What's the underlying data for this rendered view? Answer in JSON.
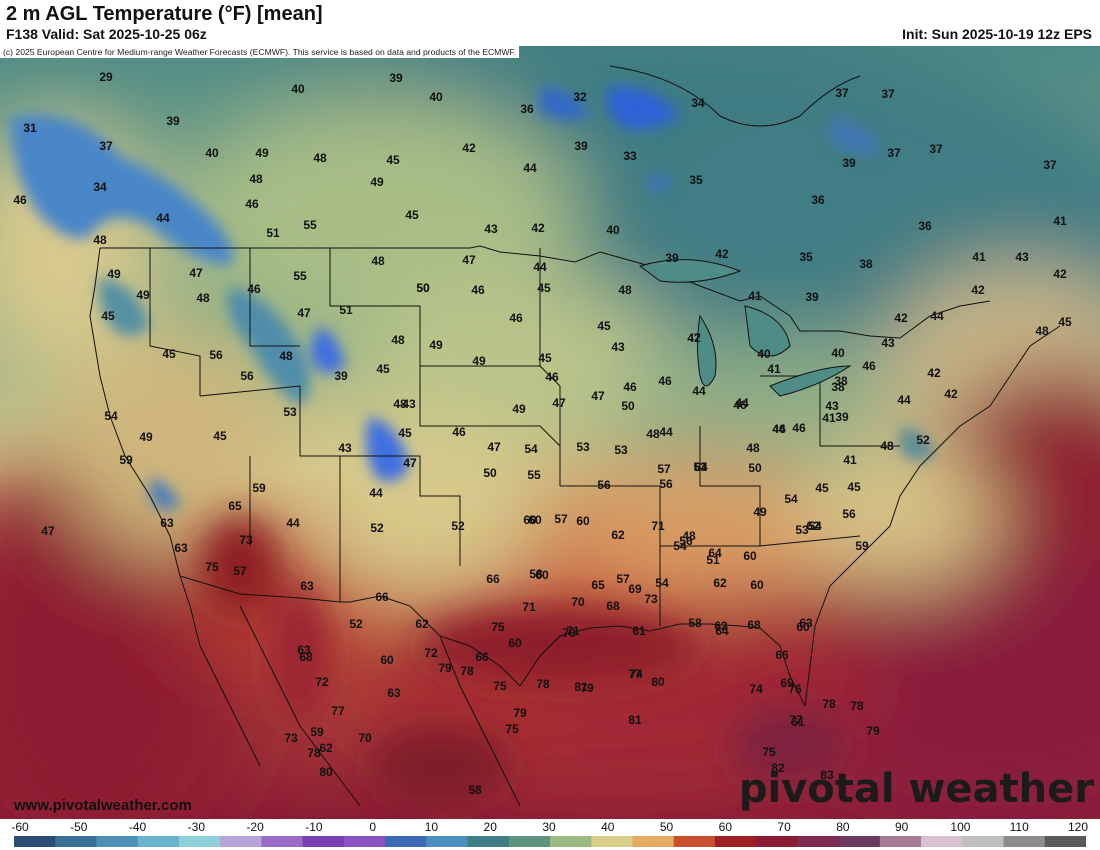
{
  "header": {
    "title": "2 m AGL Temperature (°F) [mean]",
    "valid": "F138 Valid: Sat 2025-10-25 06z",
    "init": "Init: Sun 2025-10-19 12z EPS"
  },
  "credit": "(c) 2025 European Centre for Medium-range Weather Forecasts (ECMWF). This service is based on data and products of the ECMWF.",
  "footer": {
    "website": "www.pivotalweather.com",
    "brand": "pivotal weather"
  },
  "legend": {
    "ticks": [
      "-60",
      "-50",
      "-40",
      "-30",
      "-20",
      "-10",
      "0",
      "10",
      "20",
      "30",
      "40",
      "50",
      "60",
      "70",
      "80",
      "90",
      "100",
      "110",
      "120"
    ],
    "colors": [
      "#2a4e73",
      "#3a6f96",
      "#4c91b5",
      "#6ab3cc",
      "#8fcfd9",
      "#b8a4d8",
      "#9a6cc8",
      "#7a3fb5",
      "#8a53c1",
      "#3d6ab4",
      "#4a8fbf",
      "#3f7e86",
      "#5c947e",
      "#9cb883",
      "#d8cf8a",
      "#e5ab60",
      "#c9502f",
      "#a01f24",
      "#8a1d35",
      "#7d2b52",
      "#6a3a5e",
      "#a77a95",
      "#d9c0cf",
      "#bfbfbf",
      "#8c8c8c",
      "#5a5a5a"
    ]
  },
  "map_labels": [
    {
      "t": "29"
    },
    {
      "t": "39"
    },
    {
      "t": "40"
    },
    {
      "t": "40"
    },
    {
      "t": "32"
    },
    {
      "t": "34"
    },
    {
      "t": "37"
    },
    {
      "t": "37"
    },
    {
      "t": "31"
    },
    {
      "t": "39"
    },
    {
      "t": "36"
    },
    {
      "t": "37"
    },
    {
      "t": "40"
    },
    {
      "t": "49"
    },
    {
      "t": "48"
    },
    {
      "t": "45"
    },
    {
      "t": "42"
    },
    {
      "t": "39"
    },
    {
      "t": "33"
    },
    {
      "t": "39"
    },
    {
      "t": "37"
    },
    {
      "t": "37"
    },
    {
      "t": "37"
    },
    {
      "t": "34"
    },
    {
      "t": "48"
    },
    {
      "t": "49"
    },
    {
      "t": "44"
    },
    {
      "t": "35"
    },
    {
      "t": "46"
    },
    {
      "t": "46"
    },
    {
      "t": "45"
    },
    {
      "t": "36"
    },
    {
      "t": "44"
    },
    {
      "t": "51"
    },
    {
      "t": "55"
    },
    {
      "t": "43"
    },
    {
      "t": "42"
    },
    {
      "t": "40"
    },
    {
      "t": "36"
    },
    {
      "t": "41"
    },
    {
      "t": "48"
    },
    {
      "t": "49"
    },
    {
      "t": "47"
    },
    {
      "t": "55"
    },
    {
      "t": "48"
    },
    {
      "t": "47"
    },
    {
      "t": "44"
    },
    {
      "t": "39"
    },
    {
      "t": "42"
    },
    {
      "t": "35"
    },
    {
      "t": "38"
    },
    {
      "t": "41"
    },
    {
      "t": "43"
    },
    {
      "t": "49"
    },
    {
      "t": "48"
    },
    {
      "t": "46"
    },
    {
      "t": "50"
    },
    {
      "t": "46"
    },
    {
      "t": "45"
    },
    {
      "t": "48"
    },
    {
      "t": "41"
    },
    {
      "t": "39"
    },
    {
      "t": "42"
    },
    {
      "t": "42"
    },
    {
      "t": "45"
    },
    {
      "t": "50"
    },
    {
      "t": "47"
    },
    {
      "t": "51"
    },
    {
      "t": "46"
    },
    {
      "t": "45"
    },
    {
      "t": "42"
    },
    {
      "t": "44"
    },
    {
      "t": "47"
    },
    {
      "t": "49"
    },
    {
      "t": "45"
    },
    {
      "t": "56"
    },
    {
      "t": "48"
    },
    {
      "t": "48"
    },
    {
      "t": "49"
    },
    {
      "t": "48"
    },
    {
      "t": "45"
    },
    {
      "t": "43"
    },
    {
      "t": "45"
    },
    {
      "t": "42"
    },
    {
      "t": "40"
    },
    {
      "t": "40"
    },
    {
      "t": "46"
    },
    {
      "t": "43"
    },
    {
      "t": "46"
    },
    {
      "t": "56"
    },
    {
      "t": "39"
    },
    {
      "t": "45"
    },
    {
      "t": "46"
    },
    {
      "t": "47"
    },
    {
      "t": "46"
    },
    {
      "t": "44"
    },
    {
      "t": "46"
    },
    {
      "t": "43"
    },
    {
      "t": "41"
    },
    {
      "t": "38"
    },
    {
      "t": "42"
    },
    {
      "t": "44"
    },
    {
      "t": "54"
    },
    {
      "t": "53"
    },
    {
      "t": "43"
    },
    {
      "t": "48"
    },
    {
      "t": "49"
    },
    {
      "t": "47"
    },
    {
      "t": "44"
    },
    {
      "t": "46"
    },
    {
      "t": "38"
    },
    {
      "t": "42"
    },
    {
      "t": "49"
    },
    {
      "t": "45"
    },
    {
      "t": "45"
    },
    {
      "t": "46"
    },
    {
      "t": "47"
    },
    {
      "t": "50"
    },
    {
      "t": "48"
    },
    {
      "t": "44"
    },
    {
      "t": "39"
    },
    {
      "t": "44"
    },
    {
      "t": "59"
    },
    {
      "t": "43"
    },
    {
      "t": "47"
    },
    {
      "t": "54"
    },
    {
      "t": "53"
    },
    {
      "t": "48"
    },
    {
      "t": "41"
    },
    {
      "t": "48"
    },
    {
      "t": "52"
    },
    {
      "t": "57"
    },
    {
      "t": "64"
    },
    {
      "t": "50"
    },
    {
      "t": "55"
    },
    {
      "t": "53"
    },
    {
      "t": "50"
    },
    {
      "t": "46"
    },
    {
      "t": "41"
    },
    {
      "t": "45"
    },
    {
      "t": "65"
    },
    {
      "t": "59"
    },
    {
      "t": "44"
    },
    {
      "t": "56"
    },
    {
      "t": "56"
    },
    {
      "t": "53"
    },
    {
      "t": "47"
    },
    {
      "t": "45"
    },
    {
      "t": "54"
    },
    {
      "t": "63"
    },
    {
      "t": "73"
    },
    {
      "t": "44"
    },
    {
      "t": "52"
    },
    {
      "t": "60"
    },
    {
      "t": "57"
    },
    {
      "t": "48"
    },
    {
      "t": "49"
    },
    {
      "t": "56"
    },
    {
      "t": "63"
    },
    {
      "t": "75"
    },
    {
      "t": "52"
    },
    {
      "t": "60"
    },
    {
      "t": "60"
    },
    {
      "t": "62"
    },
    {
      "t": "54"
    },
    {
      "t": "53"
    },
    {
      "t": "62"
    },
    {
      "t": "71"
    },
    {
      "t": "59"
    },
    {
      "t": "57"
    },
    {
      "t": "63"
    },
    {
      "t": "66"
    },
    {
      "t": "60"
    },
    {
      "t": "58"
    },
    {
      "t": "57"
    },
    {
      "t": "54"
    },
    {
      "t": "51"
    },
    {
      "t": "73"
    },
    {
      "t": "65"
    },
    {
      "t": "66"
    },
    {
      "t": "69"
    },
    {
      "t": "64"
    },
    {
      "t": "60"
    },
    {
      "t": "56"
    },
    {
      "t": "54"
    },
    {
      "t": "62"
    },
    {
      "t": "60"
    },
    {
      "t": "61"
    },
    {
      "t": "64"
    },
    {
      "t": "68"
    },
    {
      "t": "63"
    },
    {
      "t": "60"
    },
    {
      "t": "58"
    },
    {
      "t": "62"
    },
    {
      "t": "52"
    },
    {
      "t": "62"
    },
    {
      "t": "71"
    },
    {
      "t": "70"
    },
    {
      "t": "68"
    },
    {
      "t": "63"
    },
    {
      "t": "60"
    },
    {
      "t": "60"
    },
    {
      "t": "71"
    },
    {
      "t": "75"
    },
    {
      "t": "70"
    },
    {
      "t": "66"
    },
    {
      "t": "68"
    },
    {
      "t": "72"
    },
    {
      "t": "66"
    },
    {
      "t": "75"
    },
    {
      "t": "79"
    },
    {
      "t": "78"
    },
    {
      "t": "69"
    },
    {
      "t": "76"
    },
    {
      "t": "72"
    },
    {
      "t": "63"
    },
    {
      "t": "78"
    },
    {
      "t": "79"
    },
    {
      "t": "74"
    },
    {
      "t": "81"
    },
    {
      "t": "80"
    },
    {
      "t": "74"
    },
    {
      "t": "78"
    },
    {
      "t": "78"
    },
    {
      "t": "75"
    },
    {
      "t": "73"
    },
    {
      "t": "78"
    },
    {
      "t": "77"
    },
    {
      "t": "70"
    },
    {
      "t": "79"
    },
    {
      "t": "77"
    },
    {
      "t": "79"
    },
    {
      "t": "80"
    },
    {
      "t": "59"
    },
    {
      "t": "62"
    },
    {
      "t": "81"
    },
    {
      "t": "77"
    },
    {
      "t": "83"
    },
    {
      "t": "61"
    },
    {
      "t": "75"
    },
    {
      "t": "82"
    },
    {
      "t": "58"
    }
  ]
}
